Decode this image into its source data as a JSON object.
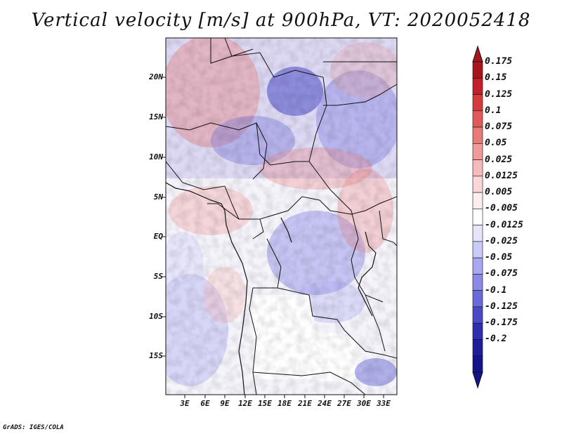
{
  "title": "Vertical velocity [m/s] at 900hPa, VT: 2020052418",
  "credit": "GrADS: IGES/COLA",
  "lat_labels": [
    "20N",
    "15N",
    "10N",
    "5N",
    "EQ",
    "5S",
    "10S",
    "15S"
  ],
  "lon_labels": [
    "3E",
    "6E",
    "9E",
    "12E",
    "15E",
    "18E",
    "21E",
    "24E",
    "27E",
    "30E",
    "33E"
  ],
  "colorbar": {
    "levels": [
      "0.175",
      "0.15",
      "0.125",
      "0.1",
      "0.075",
      "0.05",
      "0.025",
      "0.0125",
      "0.005",
      "-0.005",
      "-0.0125",
      "-0.025",
      "-0.05",
      "-0.075",
      "-0.1",
      "-0.125",
      "-0.175",
      "-0.2"
    ],
    "colors": [
      "#a8141c",
      "#c21f2a",
      "#d43a3a",
      "#e05a5a",
      "#e87a7a",
      "#f09a9a",
      "#f6baba",
      "#fad6d6",
      "#fdeeee",
      "#ffffff",
      "#e4e4fa",
      "#cacaf6",
      "#a8a8f0",
      "#8a8ae6",
      "#6a6ad8",
      "#4a4ac6",
      "#2e2eb0",
      "#1e1e9a",
      "#14148a"
    ],
    "top_color": "#a8141c",
    "bottom_color": "#14148a"
  }
}
